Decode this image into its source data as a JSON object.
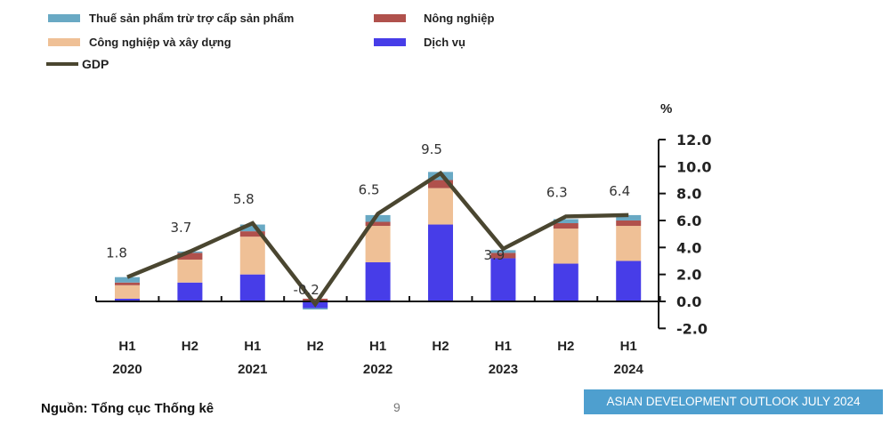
{
  "chart_data": {
    "type": "bar",
    "stacked": true,
    "unit": "%",
    "categories": [
      [
        "H1",
        "2020"
      ],
      [
        "H2",
        ""
      ],
      [
        "H1",
        "2021"
      ],
      [
        "H2",
        ""
      ],
      [
        "H1",
        "2022"
      ],
      [
        "H2",
        ""
      ],
      [
        "H1",
        "2023"
      ],
      [
        "H2",
        ""
      ],
      [
        "H1",
        "2024"
      ]
    ],
    "series": [
      {
        "name": "Dịch vụ",
        "color": "#473de8",
        "values": [
          0.2,
          1.4,
          2.0,
          -0.5,
          2.9,
          5.7,
          3.2,
          2.8,
          3.0
        ]
      },
      {
        "name": "Công nghiệp và xây dựng",
        "color": "#efc096",
        "values": [
          1.0,
          1.7,
          2.8,
          0.0,
          2.7,
          2.7,
          0.0,
          2.6,
          2.6
        ]
      },
      {
        "name": "Nông nghiệp",
        "color": "#b0514c",
        "values": [
          0.2,
          0.5,
          0.4,
          0.2,
          0.3,
          0.6,
          0.4,
          0.4,
          0.4
        ]
      },
      {
        "name": "Thuế sản phẩm trừ trợ cấp sản phẩm",
        "color": "#69a9c4",
        "values": [
          0.4,
          0.1,
          0.5,
          -0.1,
          0.5,
          0.6,
          0.2,
          0.3,
          0.4
        ]
      }
    ],
    "line": {
      "name": "GDP",
      "color": "#4a4630",
      "values": [
        1.8,
        3.7,
        5.8,
        -0.2,
        6.5,
        9.5,
        3.9,
        6.3,
        6.4
      ],
      "labels": [
        "1.8",
        "3.7",
        "5.8",
        "-0.2",
        "6.5",
        "9.5",
        "3.9",
        "6.3",
        "6.4"
      ]
    },
    "yticks": [
      "12.0",
      "10.0",
      "8.0",
      "6.0",
      "4.0",
      "2.0",
      "0.0",
      "-2.0"
    ],
    "ylim": [
      -2,
      12
    ],
    "yaxis_position": "right",
    "legend_position": "top"
  },
  "legend": {
    "tax": "Thuế sản phẩm trừ trợ cấp sản phẩm",
    "agri": "Nông nghiệp",
    "ind": "Công nghiệp và xây dựng",
    "serv": "Dịch vụ",
    "gdp": "GDP"
  },
  "source": "Nguồn: Tổng cục Thống kê",
  "page_number": "9",
  "banner": "ASIAN DEVELOPMENT OUTLOOK JULY 2024"
}
